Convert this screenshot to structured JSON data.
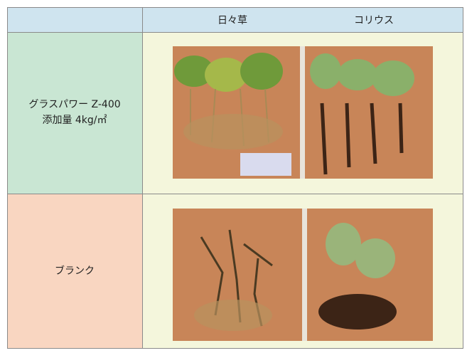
{
  "table": {
    "header": [
      "日々草",
      "コリウス"
    ],
    "rows": [
      {
        "label": [
          "グラスパワー Z-400",
          "添加量 4kg/㎡"
        ]
      },
      {
        "label": [
          "ブランク"
        ]
      }
    ]
  }
}
